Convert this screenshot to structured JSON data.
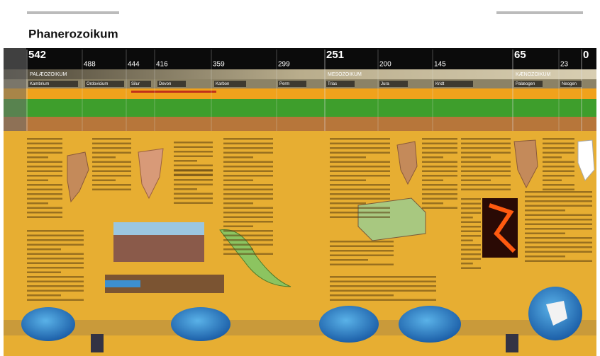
{
  "header": {
    "title": "Phanerozoikum"
  },
  "timeline": {
    "ages": [
      542,
      488,
      444,
      416,
      359,
      299,
      251,
      200,
      145,
      65,
      23,
      0
    ],
    "eras": [
      "PALÆOZOIKUM",
      "MESOZOIKUM",
      "KÆNOZOIKUM"
    ],
    "periods": [
      "Kambrium",
      "Ordovicium",
      "Silur",
      "Devon",
      "Karbon",
      "Perm",
      "Trias",
      "Jura",
      "Kridt",
      "Palæogen",
      "Neogen"
    ]
  }
}
